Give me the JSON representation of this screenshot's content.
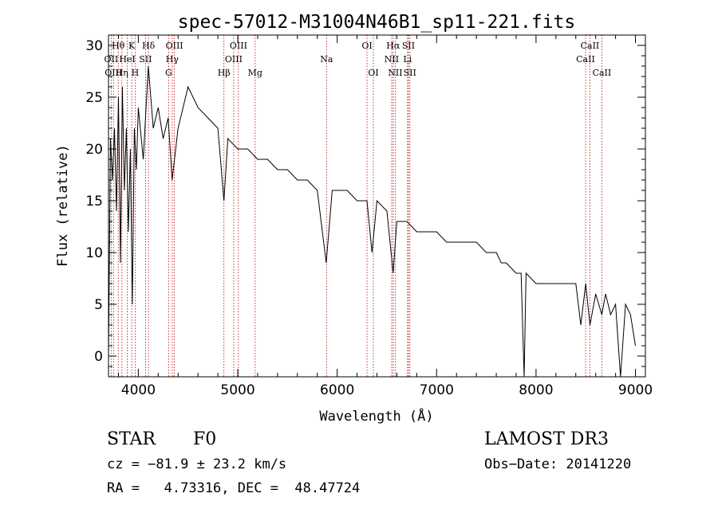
{
  "chart_data": {
    "type": "line",
    "title": "spec-57012-M31004N46B1_sp11-221.fits",
    "xlabel": "Wavelength (Å)",
    "ylabel": "Flux (relative)",
    "xlim": [
      3700,
      9100
    ],
    "ylim": [
      -2,
      31
    ],
    "x_ticks": [
      4000,
      5000,
      6000,
      7000,
      8000,
      9000
    ],
    "y_ticks": [
      0,
      5,
      10,
      15,
      20,
      25,
      30
    ],
    "grid": false,
    "series": [
      {
        "name": "flux",
        "x": [
          3700,
          3720,
          3740,
          3760,
          3780,
          3800,
          3820,
          3840,
          3860,
          3880,
          3900,
          3920,
          3940,
          3960,
          3980,
          4000,
          4050,
          4100,
          4150,
          4200,
          4250,
          4300,
          4340,
          4400,
          4450,
          4500,
          4600,
          4700,
          4800,
          4861,
          4900,
          5000,
          5100,
          5200,
          5300,
          5400,
          5500,
          5600,
          5700,
          5800,
          5890,
          5950,
          6000,
          6100,
          6200,
          6300,
          6350,
          6400,
          6500,
          6563,
          6600,
          6700,
          6800,
          6900,
          7000,
          7100,
          7200,
          7300,
          7400,
          7500,
          7600,
          7650,
          7700,
          7800,
          7850,
          7880,
          7900,
          8000,
          8100,
          8200,
          8300,
          8400,
          8450,
          8500,
          8542,
          8600,
          8662,
          8700,
          8750,
          8800,
          8850,
          8900,
          8950,
          9000
        ],
        "y": [
          0,
          21,
          17,
          22,
          14,
          25,
          9,
          26,
          16,
          22,
          12,
          20,
          5,
          22,
          18,
          24,
          19,
          28,
          22,
          24,
          21,
          23,
          17,
          22,
          24,
          26,
          24,
          23,
          22,
          15,
          21,
          20,
          20,
          19,
          19,
          18,
          18,
          17,
          17,
          16,
          9,
          16,
          16,
          16,
          15,
          15,
          10,
          15,
          14,
          8,
          13,
          13,
          12,
          12,
          12,
          11,
          11,
          11,
          11,
          10,
          10,
          9,
          9,
          8,
          8,
          -2,
          8,
          7,
          7,
          7,
          7,
          7,
          3,
          7,
          3,
          6,
          4,
          6,
          4,
          5,
          -2,
          5,
          4,
          1
        ]
      }
    ],
    "line_markers": [
      {
        "label": "Hθ",
        "x": 3798,
        "row": 1
      },
      {
        "label": "OII",
        "x": 3727,
        "row": 2
      },
      {
        "label": "OIII",
        "x": 3750,
        "row": 3
      },
      {
        "label": "K",
        "x": 3934,
        "row": 1
      },
      {
        "label": "HeI",
        "x": 3889,
        "row": 2
      },
      {
        "label": "Hη",
        "x": 3835,
        "row": 3
      },
      {
        "label": "SII",
        "x": 4072,
        "row": 2
      },
      {
        "label": "H",
        "x": 3968,
        "row": 3
      },
      {
        "label": "Hδ",
        "x": 4102,
        "row": 1
      },
      {
        "label": "OIII",
        "x": 4363,
        "row": 1
      },
      {
        "label": "Hγ",
        "x": 4341,
        "row": 2
      },
      {
        "label": "G",
        "x": 4305,
        "row": 3
      },
      {
        "label": "Hβ",
        "x": 4861,
        "row": 3
      },
      {
        "label": "OIII",
        "x": 5007,
        "row": 1
      },
      {
        "label": "OIII",
        "x": 4959,
        "row": 2
      },
      {
        "label": "Mg",
        "x": 5175,
        "row": 3
      },
      {
        "label": "Na",
        "x": 5893,
        "row": 2
      },
      {
        "label": "OI",
        "x": 6300,
        "row": 1
      },
      {
        "label": "OI",
        "x": 6364,
        "row": 3
      },
      {
        "label": "Hα",
        "x": 6563,
        "row": 1
      },
      {
        "label": "NII",
        "x": 6548,
        "row": 2
      },
      {
        "label": "NII",
        "x": 6584,
        "row": 3
      },
      {
        "label": "SII",
        "x": 6717,
        "row": 1
      },
      {
        "label": "Li",
        "x": 6708,
        "row": 2
      },
      {
        "label": "SII",
        "x": 6731,
        "row": 3
      },
      {
        "label": "CaII",
        "x": 8542,
        "row": 1
      },
      {
        "label": "CaII",
        "x": 8498,
        "row": 2
      },
      {
        "label": "CaII",
        "x": 8662,
        "row": 3
      }
    ]
  },
  "info": {
    "object_class": "STAR",
    "subclass": "F0",
    "survey": "LAMOST DR3",
    "cz": "cz = −81.9 ± 23.2 km/s",
    "obs_date": "Obs−Date: 20141220",
    "coords": "RA =   4.73316, DEC =  48.47724"
  }
}
